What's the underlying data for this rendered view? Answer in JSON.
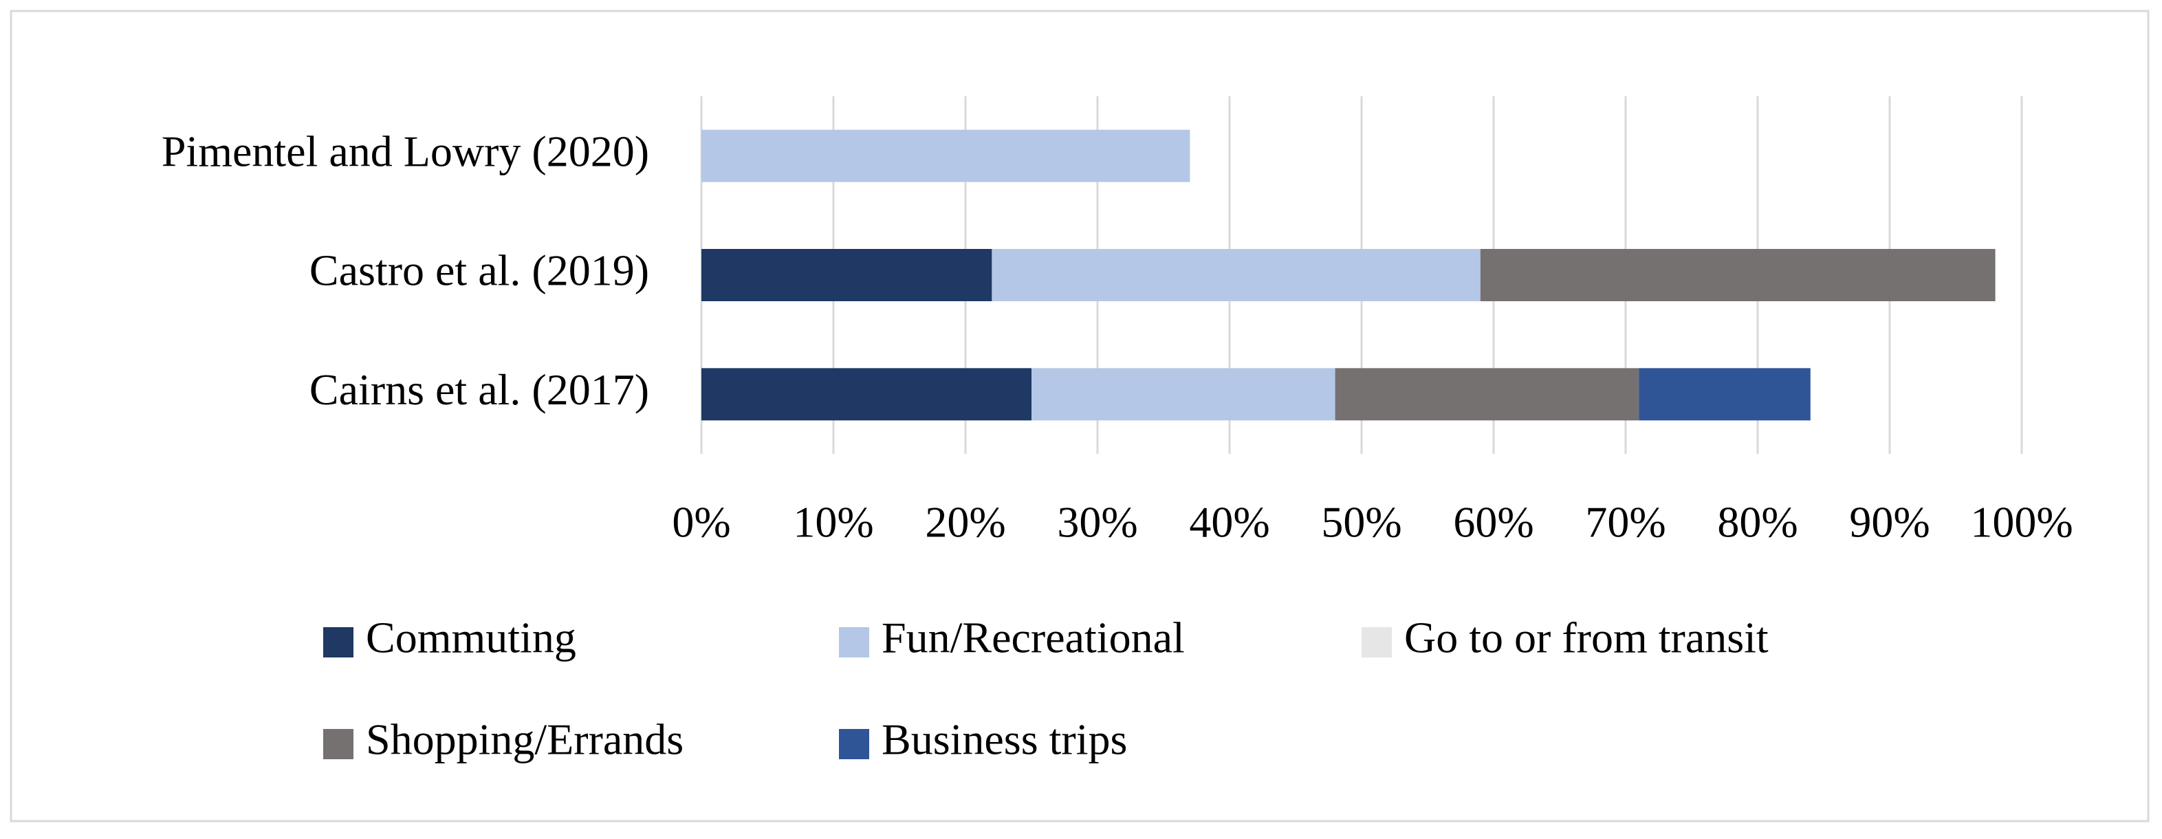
{
  "chart_data": {
    "type": "stacked-barh",
    "categories": [
      "Pimentel and Lowry (2020)",
      "Castro et al. (2019)",
      "Cairns et al. (2017)"
    ],
    "series": [
      {
        "name": "Commuting",
        "color": "#1f3864",
        "values": [
          0,
          22,
          25
        ]
      },
      {
        "name": "Fun/Recreational",
        "color": "#b4c7e7",
        "values": [
          37,
          37,
          23
        ]
      },
      {
        "name": "Go to or from transit",
        "color": "#e7e6e6",
        "values": [
          0,
          0,
          0
        ]
      },
      {
        "name": "Shopping/Errands",
        "color": "#767171",
        "values": [
          0,
          39,
          23
        ]
      },
      {
        "name": "Business trips",
        "color": "#2f5597",
        "values": [
          0,
          0,
          13
        ]
      }
    ],
    "xlim": [
      0,
      100
    ],
    "xticks": [
      {
        "value": 0,
        "label": "0%"
      },
      {
        "value": 10,
        "label": "10%"
      },
      {
        "value": 20,
        "label": "20%"
      },
      {
        "value": 30,
        "label": "30%"
      },
      {
        "value": 40,
        "label": "40%"
      },
      {
        "value": 50,
        "label": "50%"
      },
      {
        "value": 60,
        "label": "60%"
      },
      {
        "value": 70,
        "label": "70%"
      },
      {
        "value": 80,
        "label": "80%"
      },
      {
        "value": 90,
        "label": "90%"
      },
      {
        "value": 100,
        "label": "100%"
      }
    ],
    "grid": true,
    "legend": "bottom"
  }
}
